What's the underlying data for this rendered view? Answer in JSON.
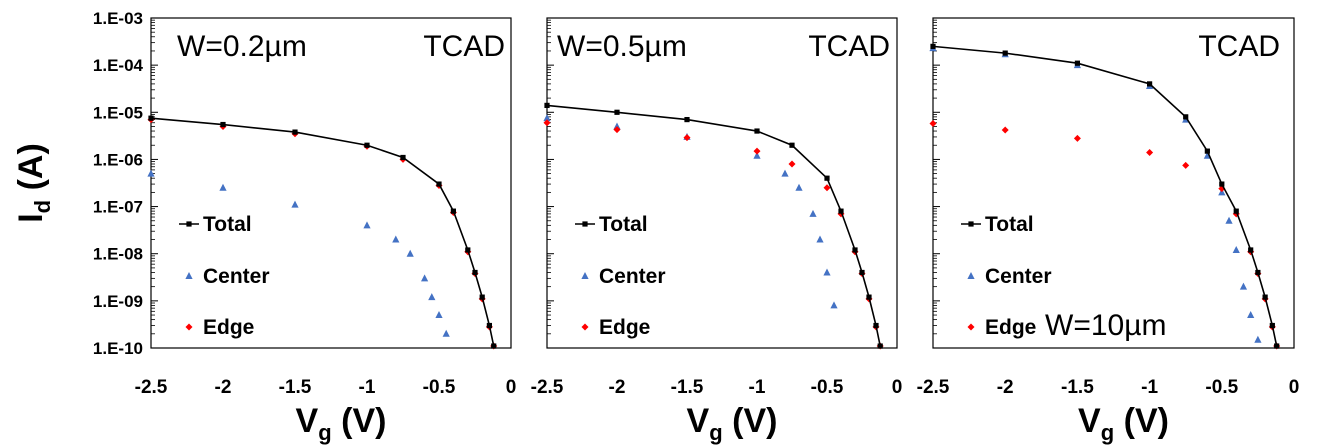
{
  "chart_data": {
    "type": "scatter",
    "y_scale": "log",
    "ylim": [
      1e-10,
      0.001
    ],
    "xlim": [
      -2.5,
      0
    ],
    "y_tick_labels": [
      "1.E-03",
      "1.E-04",
      "1.E-05",
      "1.E-06",
      "1.E-07",
      "1.E-08",
      "1.E-09",
      "1.E-10"
    ],
    "x_tick_labels": [
      "-2.5",
      "-2",
      "-1.5",
      "-1",
      "-0.5",
      "0"
    ],
    "ylabel": {
      "main": "I",
      "sub": "d",
      "unit": " (A)"
    },
    "xlabel": {
      "main": "V",
      "sub": "g",
      "unit": " (V)"
    },
    "legend": {
      "placement": "lower-left",
      "entries": [
        "Total",
        "Center",
        "Edge"
      ]
    },
    "colors": {
      "Total": "#000000",
      "Center": "#4472c4",
      "Edge": "#ff0000"
    },
    "panels": [
      {
        "annotations": [
          "W=0.2µm",
          "TCAD"
        ],
        "series": [
          {
            "name": "Total",
            "marker": "square-line",
            "x": [
              -2.5,
              -2.0,
              -1.5,
              -1.0,
              -0.75,
              -0.5,
              -0.4,
              -0.3,
              -0.25,
              -0.2,
              -0.15,
              -0.12
            ],
            "y": [
              7.5e-06,
              5.5e-06,
              3.8e-06,
              2e-06,
              1.1e-06,
              3e-07,
              8e-08,
              1.2e-08,
              4e-09,
              1.2e-09,
              3e-10,
              1.1e-10
            ]
          },
          {
            "name": "Center",
            "marker": "triangle",
            "x": [
              -2.5,
              -2.0,
              -1.5,
              -1.0,
              -0.8,
              -0.7,
              -0.6,
              -0.55,
              -0.5,
              -0.45
            ],
            "y": [
              5e-07,
              2.5e-07,
              1.1e-07,
              4e-08,
              2e-08,
              1e-08,
              3e-09,
              1.2e-09,
              5e-10,
              2e-10
            ]
          },
          {
            "name": "Edge",
            "marker": "diamond",
            "x": [
              -2.5,
              -2.0,
              -1.5,
              -1.0,
              -0.75,
              -0.5,
              -0.4,
              -0.3,
              -0.25,
              -0.2,
              -0.15,
              -0.12
            ],
            "y": [
              7e-06,
              5e-06,
              3.5e-06,
              1.9e-06,
              1e-06,
              2.8e-07,
              7.5e-08,
              1.1e-08,
              3.8e-09,
              1.1e-09,
              2.8e-10,
              1.1e-10
            ]
          }
        ]
      },
      {
        "annotations": [
          "W=0.5µm",
          "TCAD"
        ],
        "series": [
          {
            "name": "Total",
            "marker": "square-line",
            "x": [
              -2.5,
              -2.0,
              -1.5,
              -1.0,
              -0.75,
              -0.5,
              -0.4,
              -0.3,
              -0.25,
              -0.2,
              -0.15,
              -0.12
            ],
            "y": [
              1.4e-05,
              1e-05,
              7e-06,
              4e-06,
              2e-06,
              4e-07,
              8e-08,
              1.2e-08,
              4e-09,
              1.2e-09,
              3e-10,
              1.1e-10
            ]
          },
          {
            "name": "Center",
            "marker": "triangle",
            "x": [
              -2.5,
              -2.0,
              -1.5,
              -1.0,
              -0.8,
              -0.7,
              -0.6,
              -0.55,
              -0.5,
              -0.45
            ],
            "y": [
              7.5e-06,
              5e-06,
              3e-06,
              1.2e-06,
              5e-07,
              2.5e-07,
              7e-08,
              2e-08,
              4e-09,
              8e-10
            ]
          },
          {
            "name": "Edge",
            "marker": "diamond",
            "x": [
              -2.5,
              -2.0,
              -1.5,
              -1.0,
              -0.75,
              -0.5,
              -0.4,
              -0.3,
              -0.25,
              -0.2,
              -0.15,
              -0.12
            ],
            "y": [
              6e-06,
              4.3e-06,
              2.9e-06,
              1.5e-06,
              8e-07,
              2.5e-07,
              7e-08,
              1.1e-08,
              3.8e-09,
              1.1e-09,
              2.8e-10,
              1.1e-10
            ]
          }
        ]
      },
      {
        "annotations": [
          "TCAD",
          "W=10µm"
        ],
        "series": [
          {
            "name": "Total",
            "marker": "square-line",
            "x": [
              -2.5,
              -2.0,
              -1.5,
              -1.0,
              -0.75,
              -0.6,
              -0.5,
              -0.4,
              -0.3,
              -0.25,
              -0.2,
              -0.15,
              -0.12
            ],
            "y": [
              0.00025,
              0.00018,
              0.00011,
              4e-05,
              8e-06,
              1.5e-06,
              3e-07,
              8e-08,
              1.2e-08,
              4e-09,
              1.2e-09,
              3e-10,
              1.1e-10
            ]
          },
          {
            "name": "Center",
            "marker": "triangle",
            "x": [
              -2.5,
              -2.0,
              -1.5,
              -1.0,
              -0.75,
              -0.6,
              -0.5,
              -0.45,
              -0.4,
              -0.35,
              -0.3,
              -0.25
            ],
            "y": [
              0.00023,
              0.00017,
              0.0001,
              3.6e-05,
              7e-06,
              1.2e-06,
              2e-07,
              5e-08,
              1.2e-08,
              2e-09,
              5e-10,
              1.5e-10
            ]
          },
          {
            "name": "Edge",
            "marker": "diamond",
            "x": [
              -2.5,
              -2.0,
              -1.5,
              -1.0,
              -0.75,
              -0.5,
              -0.4,
              -0.3,
              -0.25,
              -0.2,
              -0.15,
              -0.12
            ],
            "y": [
              5.8e-06,
              4.2e-06,
              2.8e-06,
              1.4e-06,
              7.5e-07,
              2.4e-07,
              7e-08,
              1.1e-08,
              3.8e-09,
              1.1e-09,
              2.8e-10,
              1.1e-10
            ]
          }
        ]
      }
    ]
  }
}
